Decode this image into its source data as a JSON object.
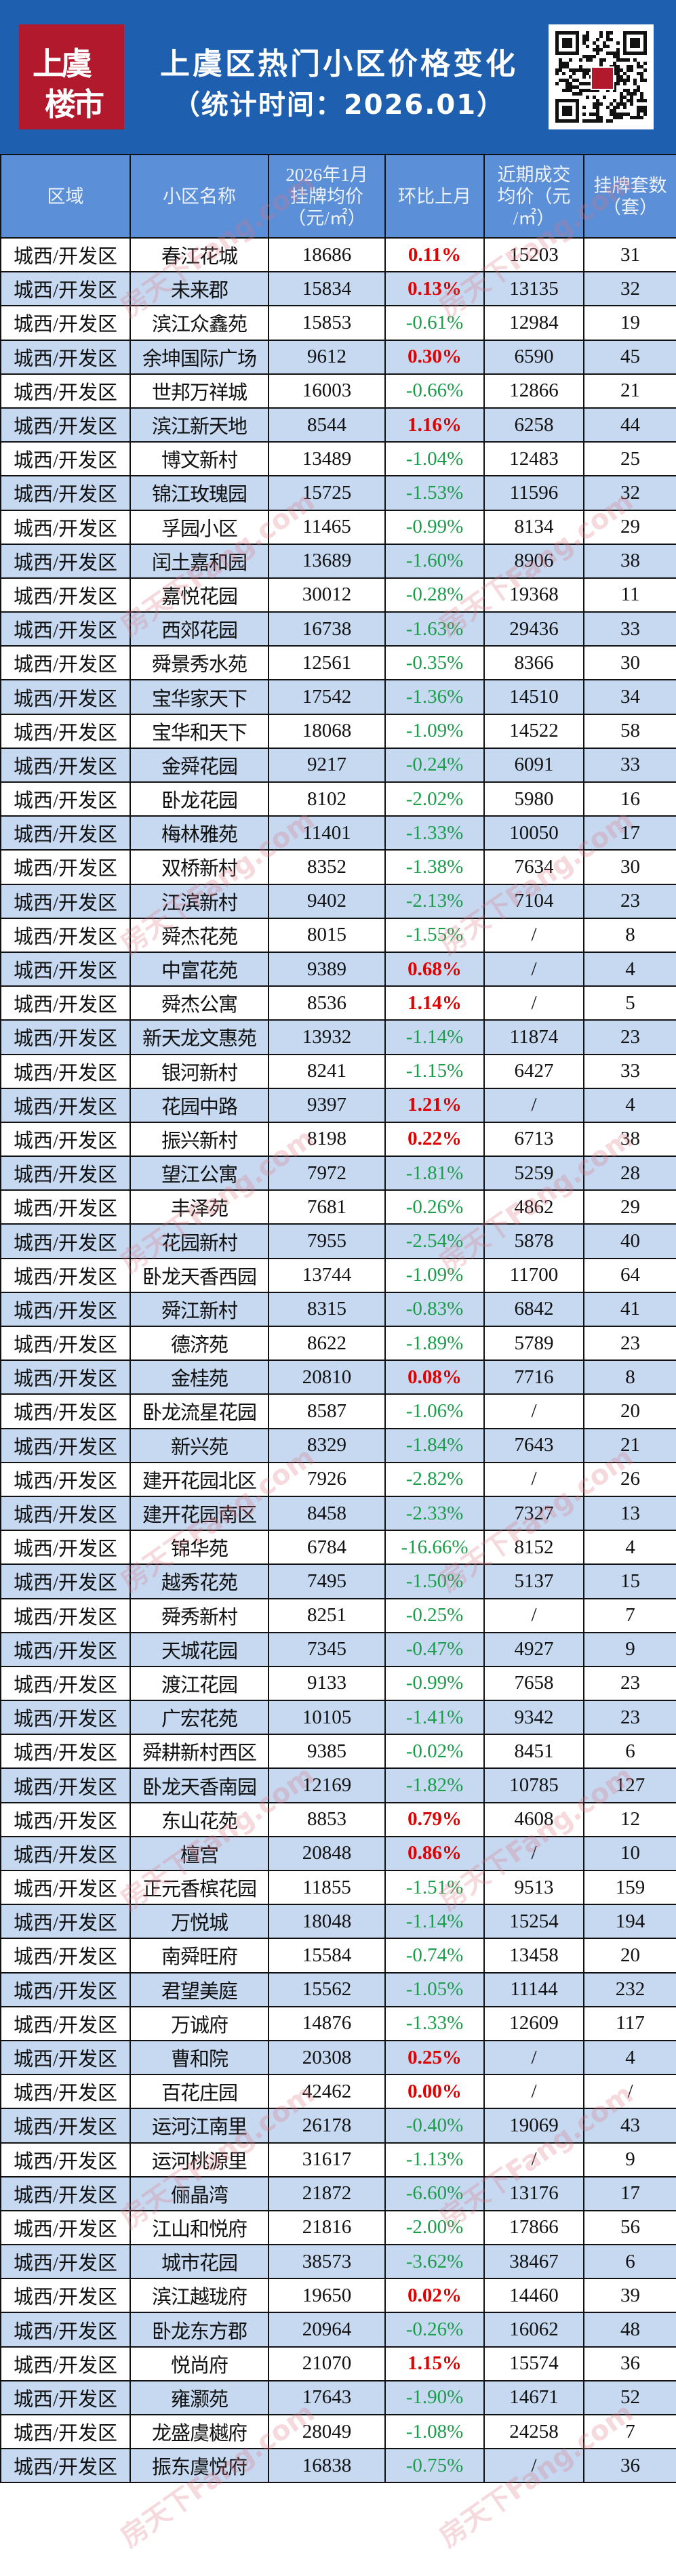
{
  "header": {
    "logo_text_line1": "上虞",
    "logo_text_line2": "楼市",
    "title": "上虞区热门小区价格变化",
    "subtitle": "（统计时间：2026.01）",
    "qr_icon": "qr-code"
  },
  "colors": {
    "banner": "#1f5fb0",
    "table_header": "#5b8fd8",
    "alt_row": "#c6d9f1",
    "increase": "#e00000",
    "decrease": "#1a9e4a",
    "logo": "#b3192c"
  },
  "watermark": "房天下Fang.com",
  "table": {
    "columns": [
      "区域",
      "小区名称",
      "2026年1月\n挂牌均价\n（元/㎡）",
      "环比上月",
      "近期成交\n均价（元\n/㎡）",
      "挂牌套数\n（套）"
    ],
    "rows": [
      [
        "城西/开发区",
        "春江花城",
        "18686",
        "0.11%",
        "15203",
        "31"
      ],
      [
        "城西/开发区",
        "未来郡",
        "15834",
        "0.13%",
        "13135",
        "32"
      ],
      [
        "城西/开发区",
        "滨江众鑫苑",
        "15853",
        "-0.61%",
        "12984",
        "19"
      ],
      [
        "城西/开发区",
        "余坤国际广场",
        "9612",
        "0.30%",
        "6590",
        "45"
      ],
      [
        "城西/开发区",
        "世邦万祥城",
        "16003",
        "-0.66%",
        "12866",
        "21"
      ],
      [
        "城西/开发区",
        "滨江新天地",
        "8544",
        "1.16%",
        "6258",
        "44"
      ],
      [
        "城西/开发区",
        "博文新村",
        "13489",
        "-1.04%",
        "12483",
        "25"
      ],
      [
        "城西/开发区",
        "锦江玫瑰园",
        "15725",
        "-1.53%",
        "11596",
        "32"
      ],
      [
        "城西/开发区",
        "孚园小区",
        "11465",
        "-0.99%",
        "8134",
        "29"
      ],
      [
        "城西/开发区",
        "闰土嘉和园",
        "13689",
        "-1.60%",
        "8906",
        "38"
      ],
      [
        "城西/开发区",
        "嘉悦花园",
        "30012",
        "-0.28%",
        "19368",
        "11"
      ],
      [
        "城西/开发区",
        "西郊花园",
        "16738",
        "-1.63%",
        "29436",
        "33"
      ],
      [
        "城西/开发区",
        "舜景秀水苑",
        "12561",
        "-0.35%",
        "8366",
        "30"
      ],
      [
        "城西/开发区",
        "宝华家天下",
        "17542",
        "-1.36%",
        "14510",
        "34"
      ],
      [
        "城西/开发区",
        "宝华和天下",
        "18068",
        "-1.09%",
        "14522",
        "58"
      ],
      [
        "城西/开发区",
        "金舜花园",
        "9217",
        "-0.24%",
        "6091",
        "33"
      ],
      [
        "城西/开发区",
        "卧龙花园",
        "8102",
        "-2.02%",
        "5980",
        "16"
      ],
      [
        "城西/开发区",
        "梅林雅苑",
        "11401",
        "-1.33%",
        "10050",
        "17"
      ],
      [
        "城西/开发区",
        "双桥新村",
        "8352",
        "-1.38%",
        "7634",
        "30"
      ],
      [
        "城西/开发区",
        "江滨新村",
        "9402",
        "-2.13%",
        "7104",
        "23"
      ],
      [
        "城西/开发区",
        "舜杰花苑",
        "8015",
        "-1.55%",
        "/",
        "8"
      ],
      [
        "城西/开发区",
        "中富花苑",
        "9389",
        "0.68%",
        "/",
        "4"
      ],
      [
        "城西/开发区",
        "舜杰公寓",
        "8536",
        "1.14%",
        "/",
        "5"
      ],
      [
        "城西/开发区",
        "新天龙文惠苑",
        "13932",
        "-1.14%",
        "11874",
        "23"
      ],
      [
        "城西/开发区",
        "银河新村",
        "8241",
        "-1.15%",
        "6427",
        "33"
      ],
      [
        "城西/开发区",
        "花园中路",
        "9397",
        "1.21%",
        "/",
        "4"
      ],
      [
        "城西/开发区",
        "振兴新村",
        "8198",
        "0.22%",
        "6713",
        "38"
      ],
      [
        "城西/开发区",
        "望江公寓",
        "7972",
        "-1.81%",
        "5259",
        "28"
      ],
      [
        "城西/开发区",
        "丰泽苑",
        "7681",
        "-0.26%",
        "4862",
        "29"
      ],
      [
        "城西/开发区",
        "花园新村",
        "7955",
        "-2.54%",
        "5878",
        "40"
      ],
      [
        "城西/开发区",
        "卧龙天香西园",
        "13744",
        "-1.09%",
        "11700",
        "64"
      ],
      [
        "城西/开发区",
        "舜江新村",
        "8315",
        "-0.83%",
        "6842",
        "41"
      ],
      [
        "城西/开发区",
        "德济苑",
        "8622",
        "-1.89%",
        "5789",
        "23"
      ],
      [
        "城西/开发区",
        "金桂苑",
        "20810",
        "0.08%",
        "7716",
        "8"
      ],
      [
        "城西/开发区",
        "卧龙流星花园",
        "8587",
        "-1.06%",
        "/",
        "20"
      ],
      [
        "城西/开发区",
        "新兴苑",
        "8329",
        "-1.84%",
        "7643",
        "21"
      ],
      [
        "城西/开发区",
        "建开花园北区",
        "7926",
        "-2.82%",
        "/",
        "26"
      ],
      [
        "城西/开发区",
        "建开花园南区",
        "8458",
        "-2.33%",
        "7327",
        "13"
      ],
      [
        "城西/开发区",
        "锦华苑",
        "6784",
        "-16.66%",
        "8152",
        "4"
      ],
      [
        "城西/开发区",
        "越秀花苑",
        "7495",
        "-1.50%",
        "5137",
        "15"
      ],
      [
        "城西/开发区",
        "舜秀新村",
        "8251",
        "-0.25%",
        "/",
        "7"
      ],
      [
        "城西/开发区",
        "天城花园",
        "7345",
        "-0.47%",
        "4927",
        "9"
      ],
      [
        "城西/开发区",
        "渡江花园",
        "9133",
        "-0.99%",
        "7658",
        "23"
      ],
      [
        "城西/开发区",
        "广宏花苑",
        "10105",
        "-1.41%",
        "9342",
        "23"
      ],
      [
        "城西/开发区",
        "舜耕新村西区",
        "9385",
        "-0.02%",
        "8451",
        "6"
      ],
      [
        "城西/开发区",
        "卧龙天香南园",
        "12169",
        "-1.82%",
        "10785",
        "127"
      ],
      [
        "城西/开发区",
        "东山花苑",
        "8853",
        "0.79%",
        "4608",
        "12"
      ],
      [
        "城西/开发区",
        "檀宫",
        "20848",
        "0.86%",
        "/",
        "10"
      ],
      [
        "城西/开发区",
        "正元香槟花园",
        "11855",
        "-1.51%",
        "9513",
        "159"
      ],
      [
        "城西/开发区",
        "万悦城",
        "18048",
        "-1.14%",
        "15254",
        "194"
      ],
      [
        "城西/开发区",
        "南舜旺府",
        "15584",
        "-0.74%",
        "13458",
        "20"
      ],
      [
        "城西/开发区",
        "君望美庭",
        "15562",
        "-1.05%",
        "11144",
        "232"
      ],
      [
        "城西/开发区",
        "万诚府",
        "14876",
        "-1.33%",
        "12609",
        "117"
      ],
      [
        "城西/开发区",
        "曹和院",
        "20308",
        "0.25%",
        "/",
        "4"
      ],
      [
        "城西/开发区",
        "百花庄园",
        "42462",
        "0.00%",
        "/",
        "/"
      ],
      [
        "城西/开发区",
        "运河江南里",
        "26178",
        "-0.40%",
        "19069",
        "43"
      ],
      [
        "城西/开发区",
        "运河桃源里",
        "31617",
        "-1.13%",
        "/",
        "9"
      ],
      [
        "城西/开发区",
        "俪晶湾",
        "21872",
        "-6.60%",
        "13176",
        "17"
      ],
      [
        "城西/开发区",
        "江山和悦府",
        "21816",
        "-2.00%",
        "17866",
        "56"
      ],
      [
        "城西/开发区",
        "城市花园",
        "38573",
        "-3.62%",
        "38467",
        "6"
      ],
      [
        "城西/开发区",
        "滨江越珑府",
        "19650",
        "0.02%",
        "14460",
        "39"
      ],
      [
        "城西/开发区",
        "卧龙东方郡",
        "20964",
        "-0.26%",
        "16062",
        "48"
      ],
      [
        "城西/开发区",
        "悦尚府",
        "21070",
        "1.15%",
        "15574",
        "36"
      ],
      [
        "城西/开发区",
        "雍灏苑",
        "17643",
        "-1.90%",
        "14671",
        "52"
      ],
      [
        "城西/开发区",
        "龙盛虞樾府",
        "28049",
        "-1.08%",
        "24258",
        "7"
      ],
      [
        "城西/开发区",
        "振东虞悦府",
        "16838",
        "-0.75%",
        "/",
        "36"
      ]
    ]
  }
}
